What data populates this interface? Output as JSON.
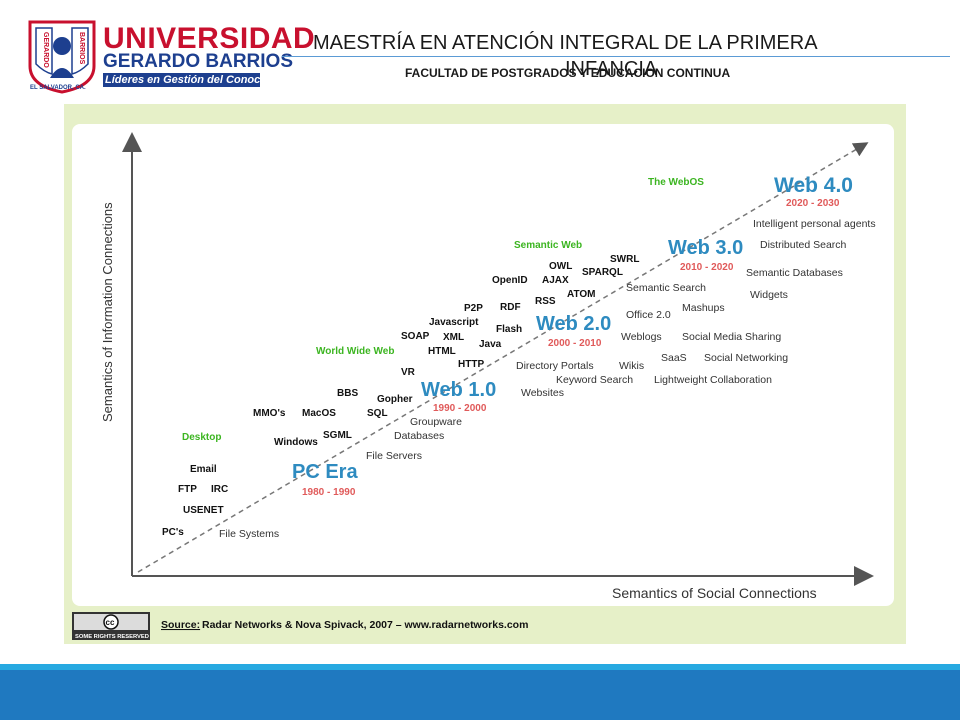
{
  "header": {
    "university_line1": "UNIVERSIDAD",
    "university_line2": "GERARDO BARRIOS",
    "tagline": "Líderes en Gestión del Conocimiento",
    "crest_text_left": "GERARDO",
    "crest_text_right": "BARRIOS",
    "crest_country": "EL SALVADOR, CA.",
    "title": "MAESTRÍA EN ATENCIÓN INTEGRAL DE LA PRIMERA",
    "title_wrap": "INFANCIA",
    "subtitle": "FACULTAD DE POSTGRADOS Y EDUCACION CONTINUA",
    "colors": {
      "brand_red": "#c8102e",
      "brand_blue": "#1d3f8f",
      "footer_blue": "#1f79c0",
      "footer_accent": "#27a9e1"
    }
  },
  "diagram": {
    "y_axis_label": "Semantics of Information Connections",
    "x_axis_label": "Semantics of Social Connections",
    "eras": [
      {
        "name": "PC Era",
        "years": "1980 - 1990"
      },
      {
        "name": "Web 1.0",
        "years": "1990 - 2000"
      },
      {
        "name": "Web 2.0",
        "years": "2000 - 2010"
      },
      {
        "name": "Web 3.0",
        "years": "2010 - 2020"
      },
      {
        "name": "Web 4.0",
        "years": "2020 - 2030"
      }
    ],
    "stage_labels": [
      "Desktop",
      "World Wide Web",
      "Semantic Web",
      "The WebOS"
    ],
    "left_terms": [
      "PC's",
      "USENET",
      "FTP",
      "IRC",
      "Email",
      "MMO's",
      "MacOS",
      "Windows",
      "SGML",
      "BBS",
      "Gopher",
      "SQL",
      "VR",
      "SOAP",
      "XML",
      "HTML",
      "HTTP",
      "Javascript",
      "Java",
      "P2P",
      "RDF",
      "Flash",
      "OpenID",
      "AJAX",
      "RSS",
      "OWL",
      "SWRL",
      "SPARQL",
      "ATOM"
    ],
    "right_terms": [
      "File Systems",
      "File Servers",
      "Databases",
      "Groupware",
      "Websites",
      "Keyword Search",
      "Directory Portals",
      "Wikis",
      "Lightweight Collaboration",
      "SaaS",
      "Social Networking",
      "Weblogs",
      "Social Media Sharing",
      "Office 2.0",
      "Mashups",
      "Semantic Search",
      "Widgets",
      "Semantic Databases",
      "Distributed Search",
      "Intelligent personal agents"
    ],
    "source_label": "Source:",
    "source_text": "Radar Networks & Nova Spivack, 2007 – www.radarnetworks.com",
    "cc_badge": "SOME RIGHTS RESERVED",
    "cc_logo": "cc",
    "colors": {
      "era_blue": "#2e8bc0",
      "years_red": "#e05a5a",
      "stage_green": "#3cb521",
      "panel_bg": "#e6f0c8"
    }
  }
}
